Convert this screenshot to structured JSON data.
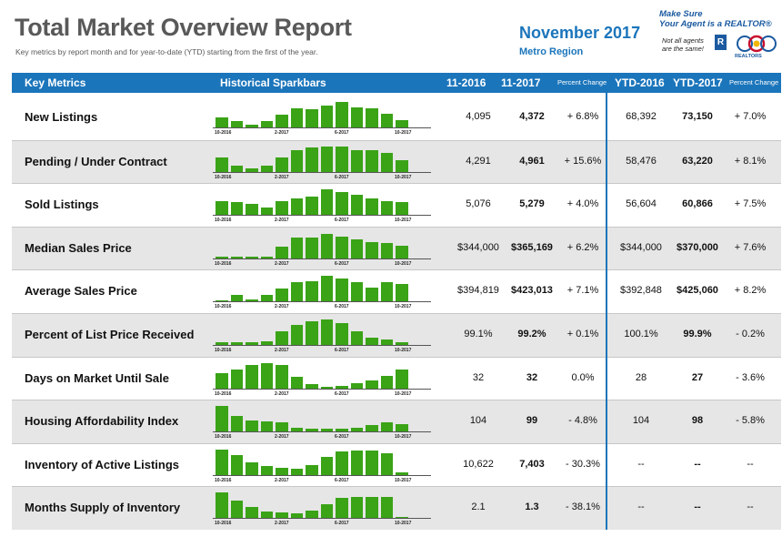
{
  "header": {
    "title": "Total Market Overview Report",
    "subtitle": "Key metrics by report month and for year-to-date (YTD) starting from the first of the year.",
    "month": "November 2017",
    "region": "Metro Region"
  },
  "logo": {
    "line1": "Make Sure",
    "line2": "Your Agent is a REALTOR®",
    "note1": "Not all agents",
    "note2": "are the same!",
    "r_mark": "R",
    "realtors": "REALTORS"
  },
  "columns": {
    "metrics": "Key Metrics",
    "sparkbars": "Historical Sparkbars",
    "p2016": "11-2016",
    "p2017": "11-2017",
    "pct": "Percent Change",
    "ytd2016": "YTD-2016",
    "ytd2017": "YTD-2017",
    "ytd_pct": "Percent Change"
  },
  "tick_labels": [
    "10-2016",
    "2-2017",
    "6-2017",
    "10-2017"
  ],
  "colors": {
    "accent": "#1b75bb",
    "bar": "#3aa316",
    "shade": "#e6e6e6"
  },
  "rows": [
    {
      "label": "New Listings",
      "v2016": "4,095",
      "v2017": "4,372",
      "pct": "+ 6.8%",
      "ytd2016": "68,392",
      "ytd2017": "73,150",
      "ytd_pct": "+ 7.0%",
      "bars": [
        0.4,
        0.25,
        0.1,
        0.25,
        0.5,
        0.75,
        0.7,
        0.85,
        1.0,
        0.8,
        0.75,
        0.55,
        0.3
      ]
    },
    {
      "label": "Pending / Under Contract",
      "v2016": "4,291",
      "v2017": "4,961",
      "pct": "+ 15.6%",
      "ytd2016": "58,476",
      "ytd2017": "63,220",
      "ytd_pct": "+ 8.1%",
      "bars": [
        0.55,
        0.25,
        0.12,
        0.25,
        0.55,
        0.85,
        0.95,
        1.0,
        1.0,
        0.85,
        0.85,
        0.75,
        0.45
      ]
    },
    {
      "label": "Sold Listings",
      "v2016": "5,076",
      "v2017": "5,279",
      "pct": "+ 4.0%",
      "ytd2016": "56,604",
      "ytd2017": "60,866",
      "ytd_pct": "+ 7.5%",
      "bars": [
        0.55,
        0.5,
        0.42,
        0.3,
        0.55,
        0.65,
        0.72,
        1.0,
        0.9,
        0.8,
        0.65,
        0.55,
        0.5
      ]
    },
    {
      "label": "Median Sales Price",
      "v2016": "$344,000",
      "v2017": "$365,169",
      "pct": "+ 6.2%",
      "ytd2016": "$344,000",
      "ytd2017": "$370,000",
      "ytd_pct": "+ 7.6%",
      "bars": [
        0.05,
        0.05,
        0.05,
        0.08,
        0.45,
        0.8,
        0.8,
        0.95,
        0.85,
        0.75,
        0.65,
        0.6,
        0.5
      ]
    },
    {
      "label": "Average Sales Price",
      "v2016": "$394,819",
      "v2017": "$423,013",
      "pct": "+ 7.1%",
      "ytd2016": "$392,848",
      "ytd2017": "$425,060",
      "ytd_pct": "+ 8.2%",
      "bars": [
        0.05,
        0.25,
        0.1,
        0.25,
        0.5,
        0.75,
        0.8,
        1.0,
        0.9,
        0.75,
        0.55,
        0.75,
        0.7
      ]
    },
    {
      "label": "Percent of List Price Received",
      "v2016": "99.1%",
      "v2017": "99.2%",
      "pct": "+ 0.1%",
      "ytd2016": "100.1%",
      "ytd2017": "99.9%",
      "ytd_pct": "- 0.2%",
      "bars": [
        0.1,
        0.12,
        0.12,
        0.15,
        0.55,
        0.8,
        0.92,
        1.0,
        0.85,
        0.55,
        0.3,
        0.2,
        0.12
      ]
    },
    {
      "label": "Days on Market Until Sale",
      "v2016": "32",
      "v2017": "32",
      "pct": "0.0%",
      "ytd2016": "28",
      "ytd2017": "27",
      "ytd_pct": "- 3.6%",
      "bars": [
        0.6,
        0.75,
        0.9,
        1.0,
        0.92,
        0.45,
        0.15,
        0.05,
        0.1,
        0.2,
        0.3,
        0.48,
        0.72
      ]
    },
    {
      "label": "Housing Affordability Index",
      "v2016": "104",
      "v2017": "99",
      "pct": "- 4.8%",
      "ytd2016": "104",
      "ytd2017": "98",
      "ytd_pct": "- 5.8%",
      "bars": [
        1.0,
        0.6,
        0.45,
        0.4,
        0.35,
        0.15,
        0.1,
        0.1,
        0.1,
        0.15,
        0.25,
        0.35,
        0.3
      ]
    },
    {
      "label": "Inventory of Active Listings",
      "v2016": "10,622",
      "v2017": "7,403",
      "pct": "- 30.3%",
      "ytd2016": "--",
      "ytd2017": "--",
      "ytd_pct": "--",
      "bars": [
        1.0,
        0.78,
        0.5,
        0.35,
        0.28,
        0.25,
        0.4,
        0.72,
        0.92,
        0.95,
        0.95,
        0.85,
        0.1
      ]
    },
    {
      "label": "Months Supply of Inventory",
      "v2016": "2.1",
      "v2017": "1.3",
      "pct": "- 38.1%",
      "ytd2016": "--",
      "ytd2017": "--",
      "ytd_pct": "--",
      "bars": [
        1.0,
        0.7,
        0.45,
        0.25,
        0.22,
        0.2,
        0.3,
        0.55,
        0.8,
        0.85,
        0.85,
        0.82,
        0.05
      ]
    }
  ]
}
